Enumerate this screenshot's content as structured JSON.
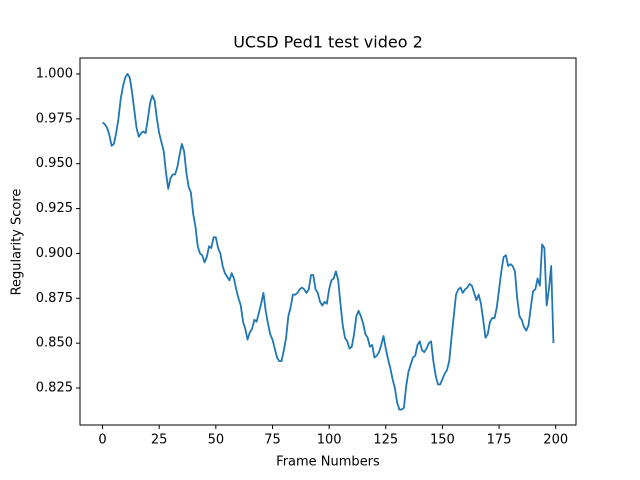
{
  "chart_data": {
    "type": "line",
    "title": "UCSD Ped1 test video 2",
    "x_label": "Frame Numbers",
    "y_label": "Regularity Score",
    "color": "#1f77b4",
    "x": [
      0,
      1,
      2,
      3,
      4,
      5,
      6,
      7,
      8,
      9,
      10,
      11,
      12,
      13,
      14,
      15,
      16,
      17,
      18,
      19,
      20,
      21,
      22,
      23,
      24,
      25,
      26,
      27,
      28,
      29,
      30,
      31,
      32,
      33,
      34,
      35,
      36,
      37,
      38,
      39,
      40,
      41,
      42,
      43,
      44,
      45,
      46,
      47,
      48,
      49,
      50,
      51,
      52,
      53,
      54,
      55,
      56,
      57,
      58,
      59,
      60,
      61,
      62,
      63,
      64,
      65,
      66,
      67,
      68,
      69,
      70,
      71,
      72,
      73,
      74,
      75,
      76,
      77,
      78,
      79,
      80,
      81,
      82,
      83,
      84,
      85,
      86,
      87,
      88,
      89,
      90,
      91,
      92,
      93,
      94,
      95,
      96,
      97,
      98,
      99,
      100,
      101,
      102,
      103,
      104,
      105,
      106,
      107,
      108,
      109,
      110,
      111,
      112,
      113,
      114,
      115,
      116,
      117,
      118,
      119,
      120,
      121,
      122,
      123,
      124,
      125,
      126,
      127,
      128,
      129,
      130,
      131,
      132,
      133,
      134,
      135,
      136,
      137,
      138,
      139,
      140,
      141,
      142,
      143,
      144,
      145,
      146,
      147,
      148,
      149,
      150,
      151,
      152,
      153,
      154,
      155,
      156,
      157,
      158,
      159,
      160,
      161,
      162,
      163,
      164,
      165,
      166,
      167,
      168,
      169,
      170,
      171,
      172,
      173,
      174,
      175,
      176,
      177,
      178,
      179,
      180,
      181,
      182,
      183,
      184,
      185,
      186,
      187,
      188,
      189,
      190,
      191,
      192,
      193,
      194,
      195,
      196,
      197,
      198,
      199
    ],
    "values": [
      0.973,
      0.972,
      0.97,
      0.966,
      0.96,
      0.961,
      0.967,
      0.975,
      0.986,
      0.993,
      0.998,
      1.0,
      0.998,
      0.99,
      0.98,
      0.97,
      0.965,
      0.967,
      0.968,
      0.967,
      0.975,
      0.984,
      0.988,
      0.985,
      0.975,
      0.967,
      0.962,
      0.957,
      0.945,
      0.936,
      0.942,
      0.944,
      0.944,
      0.948,
      0.955,
      0.961,
      0.957,
      0.945,
      0.937,
      0.934,
      0.922,
      0.915,
      0.904,
      0.9,
      0.899,
      0.895,
      0.898,
      0.904,
      0.903,
      0.909,
      0.909,
      0.903,
      0.9,
      0.893,
      0.889,
      0.887,
      0.885,
      0.889,
      0.886,
      0.88,
      0.875,
      0.871,
      0.862,
      0.858,
      0.852,
      0.856,
      0.858,
      0.863,
      0.862,
      0.867,
      0.872,
      0.878,
      0.868,
      0.861,
      0.855,
      0.852,
      0.847,
      0.842,
      0.84,
      0.84,
      0.846,
      0.853,
      0.865,
      0.87,
      0.877,
      0.877,
      0.878,
      0.88,
      0.881,
      0.88,
      0.878,
      0.88,
      0.888,
      0.888,
      0.88,
      0.878,
      0.873,
      0.871,
      0.873,
      0.872,
      0.88,
      0.885,
      0.886,
      0.89,
      0.885,
      0.872,
      0.86,
      0.853,
      0.851,
      0.847,
      0.848,
      0.855,
      0.865,
      0.868,
      0.865,
      0.861,
      0.855,
      0.853,
      0.848,
      0.849,
      0.842,
      0.843,
      0.845,
      0.849,
      0.854,
      0.847,
      0.841,
      0.836,
      0.83,
      0.825,
      0.817,
      0.813,
      0.813,
      0.814,
      0.826,
      0.834,
      0.838,
      0.842,
      0.843,
      0.849,
      0.851,
      0.846,
      0.845,
      0.847,
      0.85,
      0.851,
      0.84,
      0.832,
      0.827,
      0.827,
      0.83,
      0.833,
      0.835,
      0.84,
      0.853,
      0.865,
      0.877,
      0.88,
      0.881,
      0.878,
      0.88,
      0.881,
      0.883,
      0.882,
      0.878,
      0.874,
      0.877,
      0.872,
      0.863,
      0.853,
      0.855,
      0.862,
      0.864,
      0.864,
      0.87,
      0.88,
      0.89,
      0.898,
      0.899,
      0.893,
      0.894,
      0.893,
      0.89,
      0.875,
      0.865,
      0.863,
      0.859,
      0.857,
      0.86,
      0.87,
      0.879,
      0.88,
      0.886,
      0.882,
      0.905,
      0.903,
      0.871,
      0.88,
      0.893,
      0.85
    ],
    "xlim": [
      -9.95,
      208.95
    ],
    "xticks": [
      0,
      25,
      50,
      75,
      100,
      125,
      150,
      175,
      200
    ],
    "ylim": [
      0.8044,
      1.0089
    ],
    "yticks": [
      0.825,
      {
        "value": 0.85,
        "label": "0.850"
      },
      0.875,
      {
        "value": 0.9,
        "label": "0.900"
      },
      0.925,
      {
        "value": 0.95,
        "label": "0.950"
      },
      0.975,
      {
        "value": 1,
        "label": "1.000"
      }
    ],
    "grid": false
  }
}
